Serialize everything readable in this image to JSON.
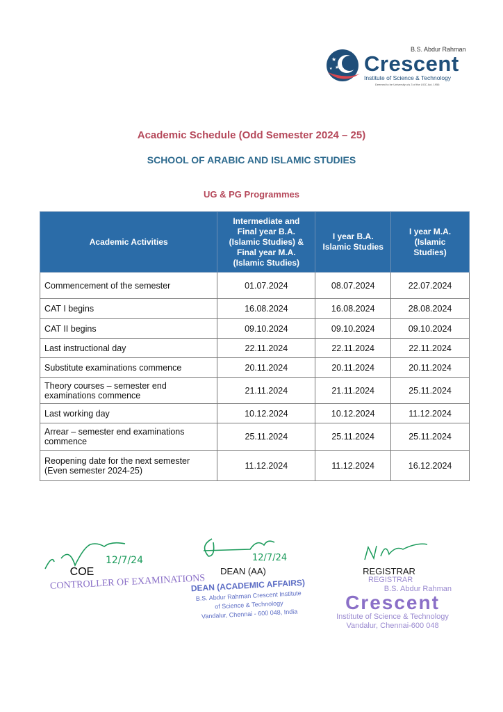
{
  "logo": {
    "prefix": "B.S. Abdur Rahman",
    "name": "Crescent",
    "subtitle": "Institute of Science & Technology",
    "deemed": "Deemed to be University u/s 3 of the UGC Act, 1956"
  },
  "heading": "Academic Schedule (Odd Semester 2024 – 25)",
  "school": "SCHOOL OF ARABIC AND ISLAMIC STUDIES",
  "programmes": "UG & PG Programmes",
  "table": {
    "headers": [
      "Academic Activities",
      "Intermediate and Final year B.A. (Islamic Studies) & Final year M.A. (Islamic Studies)",
      "I year B.A. Islamic Studies",
      "I year M.A. (Islamic Studies)"
    ],
    "rows": [
      {
        "activity": "Commencement of the semester",
        "c1": "01.07.2024",
        "c2": "08.07.2024",
        "c3": "22.07.2024"
      },
      {
        "activity": "CAT I begins",
        "c1": "16.08.2024",
        "c2": "16.08.2024",
        "c3": "28.08.2024"
      },
      {
        "activity": "CAT II begins",
        "c1": "09.10.2024",
        "c2": "09.10.2024",
        "c3": "09.10.2024"
      },
      {
        "activity": "Last instructional day",
        "c1": "22.11.2024",
        "c2": "22.11.2024",
        "c3": "22.11.2024"
      },
      {
        "activity": "Substitute examinations commence",
        "c1": "20.11.2024",
        "c2": "20.11.2024",
        "c3": "20.11.2024"
      },
      {
        "activity": "Theory courses – semester end examinations commence",
        "c1": "21.11.2024",
        "c2": "21.11.2024",
        "c3": "25.11.2024"
      },
      {
        "activity": "Last working day",
        "c1": "10.12.2024",
        "c2": "10.12.2024",
        "c3": "11.12.2024"
      },
      {
        "activity": "Arrear – semester end examinations commence",
        "c1": "25.11.2024",
        "c2": "25.11.2024",
        "c3": "25.11.2024"
      },
      {
        "activity": "Reopening date for the next semester (Even semester 2024-25)",
        "c1": "11.12.2024",
        "c2": "11.12.2024",
        "c3": "16.12.2024"
      }
    ]
  },
  "signatures": {
    "coe": {
      "role": "COE",
      "stamp": "CONTROLLER OF EXAMINATIONS",
      "date": "12/7/24"
    },
    "dean": {
      "role": "DEAN (AA)",
      "date": "12/7/24",
      "stamp": [
        "DEAN (ACADEMIC AFFAIRS)",
        "B.S. Abdur Rahman Crescent Institute",
        "of Science & Technology",
        "Vandalur, Chennai - 600 048, India"
      ]
    },
    "registrar": {
      "role": "REGISTRAR",
      "stamp": [
        "REGISTRAR",
        "B.S. Abdur Rahman",
        "Crescent",
        "Institute of Science & Technology",
        "Vandalur, Chennai-600 048"
      ]
    }
  },
  "colors": {
    "header_bg": "#2b6ca8",
    "heading": "#b5485a",
    "school": "#2d6a8e",
    "signature_ink": "#1a9a5a",
    "stamp": "#8a6fc7"
  }
}
